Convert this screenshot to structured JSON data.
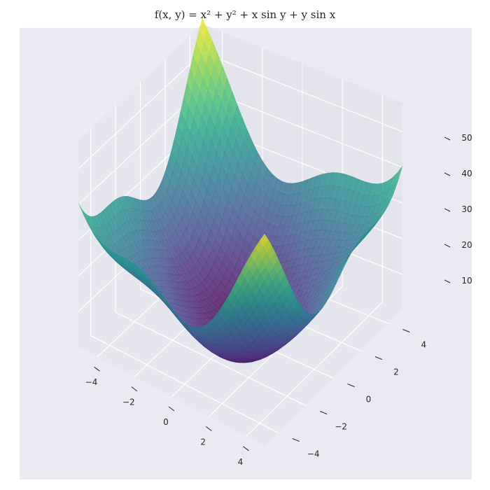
{
  "chart_data": {
    "type": "surface3d",
    "title": "f(x, y) = x² + y² + x sin y + y sin x",
    "function": "x^2 + y^2 + x*sin(y) + y*sin(x)",
    "x_range": [
      -5,
      5
    ],
    "y_range": [
      -5,
      5
    ],
    "z_range": [
      0,
      58
    ],
    "x_ticks": [
      "−4",
      "−2",
      "0",
      "2",
      "4"
    ],
    "y_ticks": [
      "−4",
      "−2",
      "0",
      "2",
      "4"
    ],
    "z_ticks": [
      "10",
      "20",
      "30",
      "40",
      "50"
    ],
    "x_tick_values": [
      -4,
      -2,
      0,
      2,
      4
    ],
    "y_tick_values": [
      -4,
      -2,
      0,
      2,
      4
    ],
    "z_tick_values": [
      10,
      20,
      30,
      40,
      50
    ],
    "colormap": "viridis",
    "surface_alpha": 0.7,
    "pane_color": "#eaeaf2",
    "grid": true
  }
}
